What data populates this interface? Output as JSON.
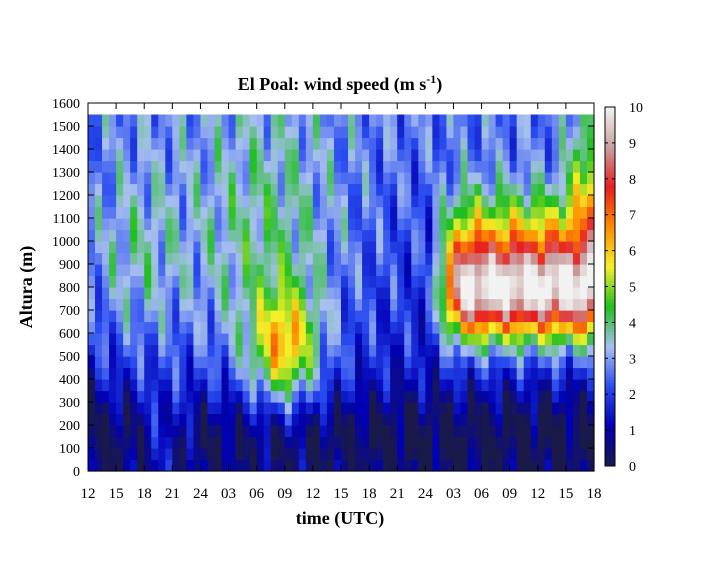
{
  "chart_data": {
    "type": "heatmap",
    "title": "El Poal: wind speed (m s",
    "title_superscript": "-1",
    "title_close": ")",
    "xlabel": "time (UTC)",
    "ylabel": "Altura (m)",
    "x_ticks": [
      "12",
      "15",
      "18",
      "21",
      "24",
      "03",
      "06",
      "09",
      "12",
      "15",
      "18",
      "21",
      "24",
      "03",
      "06",
      "09",
      "12",
      "15",
      "18"
    ],
    "xlim_hours": [
      0,
      54
    ],
    "y_ticks": [
      0,
      100,
      200,
      300,
      400,
      500,
      600,
      700,
      800,
      900,
      1000,
      1100,
      1200,
      1300,
      1400,
      1500,
      1600
    ],
    "ylim": [
      0,
      1600
    ],
    "data_top_m": 1550,
    "colorbar": {
      "ticks": [
        0,
        1,
        2,
        3,
        4,
        5,
        6,
        7,
        8,
        9,
        10
      ],
      "range": [
        0,
        10
      ],
      "palette": [
        "#1a1a4a",
        "#0000b4",
        "#2a4cf0",
        "#a8c0f0",
        "#1fbf1f",
        "#f4f02a",
        "#ff8c00",
        "#e81e1e",
        "#c8a0a0",
        "#f2f2f2"
      ]
    },
    "grid": false,
    "features": [
      {
        "label": "nocturnal low-level jet core",
        "t_start": 37,
        "t_end": 54,
        "z_min": 600,
        "z_max": 950,
        "max_speed": 10
      },
      {
        "label": "daytime maximum aloft",
        "t_start": 16,
        "t_end": 22,
        "z_min": 450,
        "z_max": 850,
        "max_speed": 6
      },
      {
        "label": "weak near-surface winds",
        "t_start": 0,
        "t_end": 54,
        "z_min": 0,
        "z_max": 400,
        "max_speed": 2
      }
    ]
  },
  "colors": {
    "axis": "#000000",
    "background": "#ffffff"
  }
}
